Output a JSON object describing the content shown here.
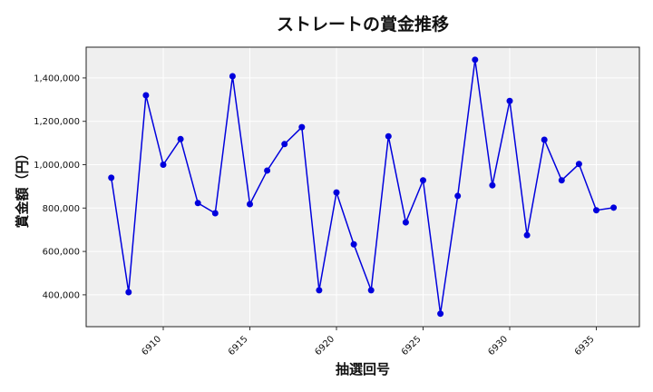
{
  "chart_data": {
    "type": "line",
    "title": "ストレートの賞金推移",
    "xlabel": "抽選回号",
    "ylabel": "賞金額（円）",
    "x": [
      6907,
      6908,
      6909,
      6910,
      6911,
      6912,
      6913,
      6914,
      6915,
      6916,
      6917,
      6918,
      6919,
      6920,
      6921,
      6922,
      6923,
      6924,
      6925,
      6926,
      6927,
      6928,
      6929,
      6930,
      6931,
      6932,
      6933,
      6934,
      6935,
      6936
    ],
    "series": [
      {
        "name": "ストレート",
        "color": "#0000dd",
        "values": [
          940000,
          412000,
          1320000,
          1000000,
          1118000,
          823000,
          776000,
          1408000,
          818000,
          973000,
          1095000,
          1173000,
          421000,
          872000,
          633000,
          421000,
          1131000,
          734000,
          928000,
          313000,
          856000,
          1484000,
          905000,
          1294000,
          675000,
          1115000,
          928000,
          1003000,
          790000,
          802000
        ]
      }
    ],
    "xticks": [
      6910,
      6915,
      6920,
      6925,
      6930,
      6935
    ],
    "yticks": [
      400000,
      600000,
      800000,
      1000000,
      1200000,
      1400000
    ],
    "ytick_labels": [
      "400,000",
      "600,000",
      "800,000",
      "1,000,000",
      "1,200,000",
      "1,400,000"
    ],
    "xlim": [
      6906.1,
      6937.0
    ],
    "ylim": [
      250000,
      1530000
    ],
    "grid": true,
    "background": "#efefef"
  }
}
